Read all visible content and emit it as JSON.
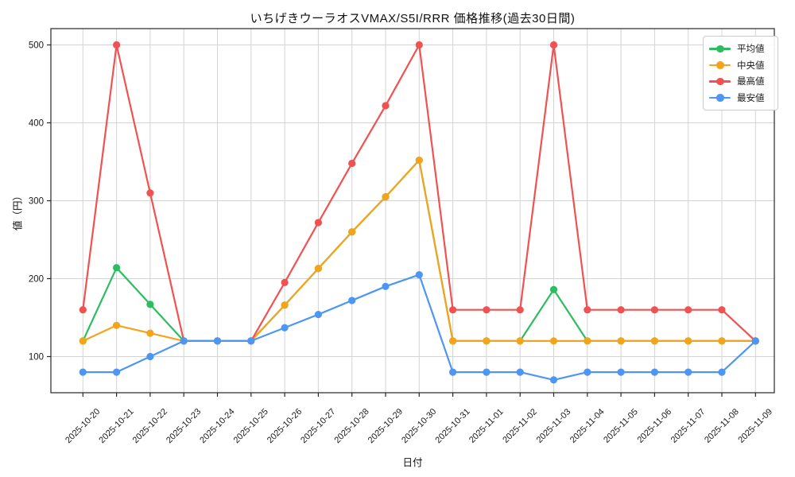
{
  "title": "いちげきウーラオスVMAX/S5I/RRR 価格推移(過去30日間)",
  "colors": {
    "background": "#ffffff",
    "grid": "#d3d3d3",
    "axis": "#262626",
    "text": "#1a1a1a",
    "average": "#2dbd60",
    "median": "#f3a41a",
    "max": "#f05251",
    "min": "#4e96f3"
  },
  "chart_data": {
    "type": "line",
    "title": "いちげきウーラオスVMAX/S5I/RRR 価格推移(過去30日間)",
    "xlabel": "日付",
    "ylabel": "値（円）",
    "x": [
      "2025-10-20",
      "2025-10-21",
      "2025-10-22",
      "2025-10-23",
      "2025-10-24",
      "2025-10-25",
      "2025-10-26",
      "2025-10-27",
      "2025-10-28",
      "2025-10-29",
      "2025-10-30",
      "2025-10-31",
      "2025-11-01",
      "2025-11-02",
      "2025-11-03",
      "2025-11-04",
      "2025-11-05",
      "2025-11-06",
      "2025-11-07",
      "2025-11-08",
      "2025-11-09"
    ],
    "series": [
      {
        "name": "平均値",
        "color": "#2dbd60",
        "values": [
          120,
          214,
          167,
          120,
          120,
          120,
          166,
          213,
          260,
          305,
          352,
          120,
          120,
          120,
          186,
          120,
          120,
          120,
          120,
          120,
          120
        ]
      },
      {
        "name": "中央値",
        "color": "#f3a41a",
        "values": [
          120,
          140,
          130,
          120,
          120,
          120,
          166,
          213,
          260,
          305,
          352,
          120,
          120,
          120,
          120,
          120,
          120,
          120,
          120,
          120,
          120
        ]
      },
      {
        "name": "最高値",
        "color": "#f05251",
        "values": [
          160,
          500,
          310,
          120,
          120,
          120,
          195,
          272,
          348,
          422,
          500,
          160,
          160,
          160,
          500,
          160,
          160,
          160,
          160,
          160,
          120
        ]
      },
      {
        "name": "最安値",
        "color": "#4e96f3",
        "values": [
          80,
          80,
          100,
          120,
          120,
          120,
          137,
          154,
          172,
          190,
          205,
          80,
          80,
          80,
          70,
          80,
          80,
          80,
          80,
          80,
          120
        ]
      }
    ],
    "yticks": [
      100,
      200,
      300,
      400,
      500
    ],
    "ylim": [
      53,
      520
    ],
    "grid": true,
    "legend_position": "upper right"
  }
}
